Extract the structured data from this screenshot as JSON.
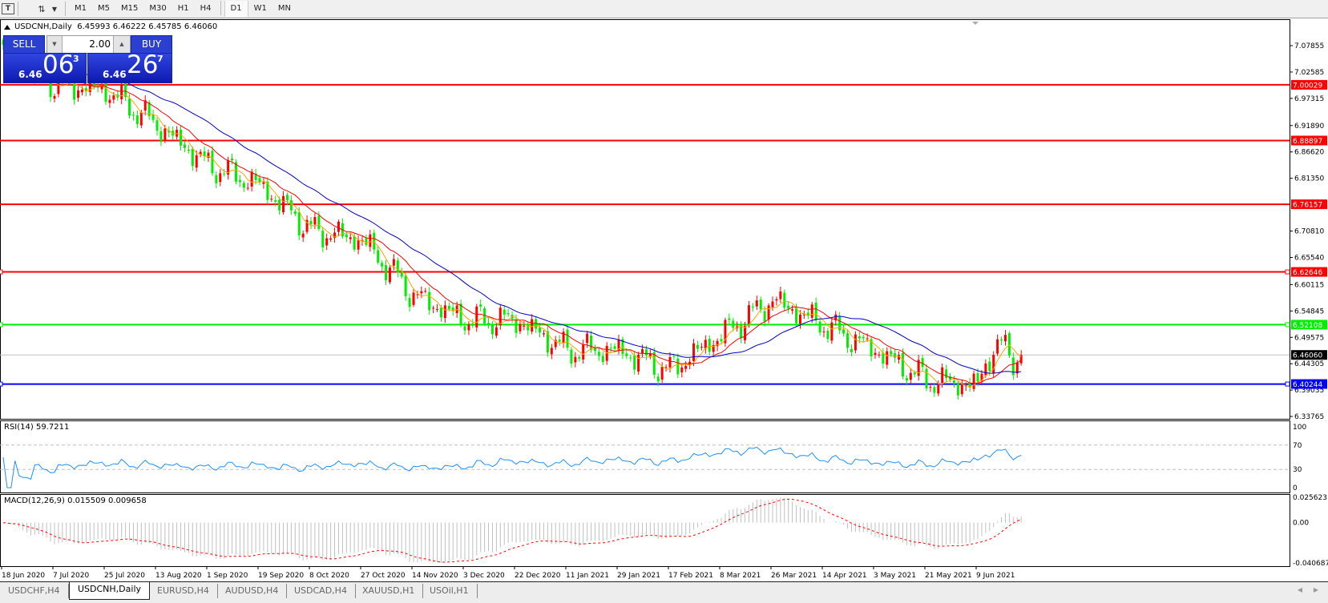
{
  "toolbar": {
    "text_tool_icon": "text-T-icon",
    "cursor_icon": "line-tools-icon",
    "timeframes": [
      "M1",
      "M5",
      "M15",
      "M30",
      "H1",
      "H4",
      "D1",
      "W1",
      "MN"
    ],
    "active_timeframe": "D1"
  },
  "chart": {
    "info_line": "USDCNH,Daily  6.45993 6.46222 6.45785 6.46060",
    "symbol": "USDCNH,Daily",
    "ohlc": {
      "open": "6.45993",
      "high": "6.46222",
      "low": "6.45785",
      "close": "6.46060"
    }
  },
  "trade_panel": {
    "sell_label": "SELL",
    "buy_label": "BUY",
    "lot_value": "2.00",
    "sell_price": {
      "prefix": "6.46",
      "big": "06",
      "sup": "3"
    },
    "buy_price": {
      "prefix": "6.46",
      "big": "26",
      "sup": "7"
    },
    "color": "#2b3fd0"
  },
  "price_axis": {
    "ticks": [
      "7.07855",
      "7.02585",
      "6.97315",
      "6.91890",
      "6.86620",
      "6.81350",
      "6.70810",
      "6.65540",
      "6.60115",
      "6.54845",
      "6.49575",
      "6.44305",
      "6.39035",
      "6.33765"
    ]
  },
  "levels": [
    {
      "value": "7.00029",
      "color": "#ff0000"
    },
    {
      "value": "6.88897",
      "color": "#ff0000"
    },
    {
      "value": "6.76157",
      "color": "#ff0000"
    },
    {
      "value": "6.62646",
      "color": "#ff0000"
    },
    {
      "value": "6.52108",
      "color": "#00ee00"
    },
    {
      "value": "6.40244",
      "color": "#0000ff"
    },
    {
      "value": "6.46060",
      "color": "#000000",
      "current": true
    }
  ],
  "rsi": {
    "label": "RSI(14) 59.7211",
    "ticks": [
      "100",
      "70",
      "30",
      "0"
    ],
    "color": "#1e90ff"
  },
  "macd": {
    "label": "MACD(12,26,9) 0.015509 0.009658",
    "ticks": [
      "0.025623",
      "0.00",
      "-0.040687"
    ],
    "hist_color": "#c0c0c0",
    "signal_color": "#ff0000"
  },
  "chart_data": {
    "type": "candlestick",
    "up_color": "#ff0000",
    "down_color": "#00ee00",
    "ma_colors": [
      "#ffa500",
      "#ff0000",
      "#0000cc"
    ],
    "categories": [
      "18 Jun 2020",
      "7 Jul 2020",
      "25 Jul 2020",
      "13 Aug 2020",
      "1 Sep 2020",
      "19 Sep 2020",
      "8 Oct 2020",
      "27 Oct 2020",
      "14 Nov 2020",
      "3 Dec 2020",
      "22 Dec 2020",
      "11 Jan 2021",
      "29 Jan 2021",
      "17 Feb 2021",
      "8 Mar 2021",
      "26 Mar 2021",
      "14 Apr 2021",
      "3 May 2021",
      "21 May 2021",
      "9 Jun 2021"
    ],
    "approx_close": [
      7.07,
      7.0,
      6.99,
      6.92,
      6.84,
      6.8,
      6.71,
      6.69,
      6.58,
      6.53,
      6.53,
      6.47,
      6.47,
      6.43,
      6.5,
      6.57,
      6.52,
      6.47,
      6.41,
      6.4
    ],
    "last_close": 6.4606,
    "ylim": [
      6.33765,
      7.12
    ]
  },
  "tabs": [
    "USDCHF,H4",
    "USDCNH,Daily",
    "EURUSD,H4",
    "AUDUSD,H4",
    "USDCAD,H4",
    "XAUUSD,H1",
    "USOil,H1"
  ],
  "active_tab": "USDCNH,Daily",
  "scroll": {
    "left": "◀",
    "right": "▶"
  }
}
